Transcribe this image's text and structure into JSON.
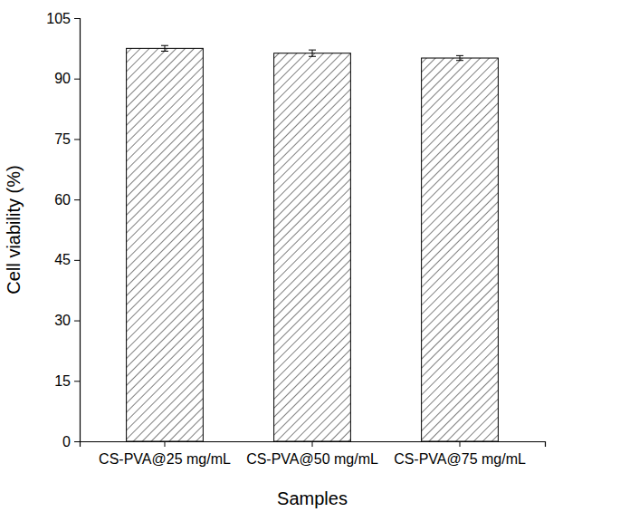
{
  "chart_data": {
    "type": "bar",
    "x_label": "Samples",
    "y_label": "Cell viability (%)",
    "categories": [
      "CS-PVA@25 mg/mL",
      "CS-PVA@50 mg/mL",
      "CS-PVA@75 mg/mL"
    ],
    "values": [
      97.5,
      96.3,
      95.1
    ],
    "errors": [
      0.7,
      0.8,
      0.6
    ],
    "color": "#000000",
    "ylim": [
      0,
      105
    ],
    "yticks": [
      0,
      15,
      30,
      45,
      60,
      75,
      90,
      105
    ],
    "grid": false
  }
}
